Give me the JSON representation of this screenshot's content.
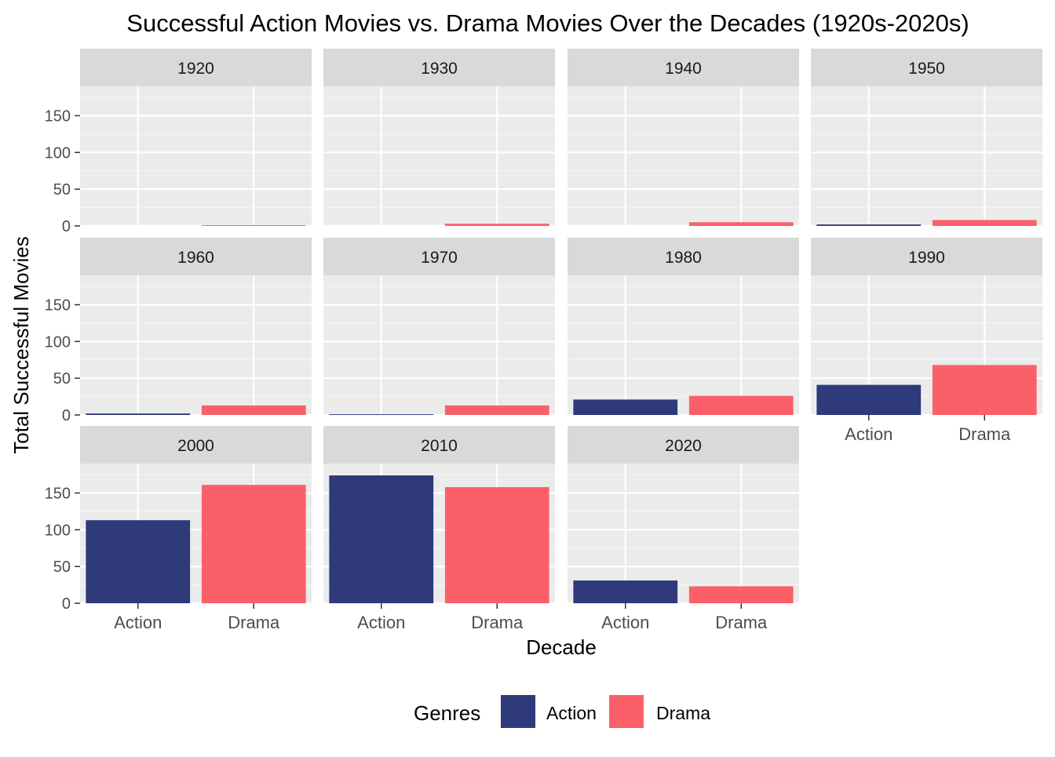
{
  "chart_data": {
    "type": "bar",
    "title": "Successful Action Movies vs. Drama Movies Over the Decades (1920s-2020s)",
    "xlabel": "Decade",
    "ylabel": "Total Successful Movies",
    "categories": [
      "Action",
      "Drama"
    ],
    "ylim": [
      0,
      190
    ],
    "yticks": [
      0,
      50,
      100,
      150
    ],
    "grid": true,
    "facet_columns": 4,
    "legend": {
      "title": "Genres",
      "position": "bottom",
      "entries": [
        {
          "name": "Action",
          "color": "#2e3a7a"
        },
        {
          "name": "Drama",
          "color": "#fb6068"
        }
      ]
    },
    "facets": [
      {
        "label": "1920",
        "values": [
          0,
          1
        ]
      },
      {
        "label": "1930",
        "values": [
          0,
          3
        ]
      },
      {
        "label": "1940",
        "values": [
          0,
          5
        ]
      },
      {
        "label": "1950",
        "values": [
          2,
          8
        ]
      },
      {
        "label": "1960",
        "values": [
          2,
          13
        ]
      },
      {
        "label": "1970",
        "values": [
          1,
          13
        ]
      },
      {
        "label": "1980",
        "values": [
          21,
          26
        ]
      },
      {
        "label": "1990",
        "values": [
          41,
          68
        ]
      },
      {
        "label": "2000",
        "values": [
          113,
          161
        ]
      },
      {
        "label": "2010",
        "values": [
          174,
          158
        ]
      },
      {
        "label": "2020",
        "values": [
          31,
          23
        ]
      }
    ]
  }
}
